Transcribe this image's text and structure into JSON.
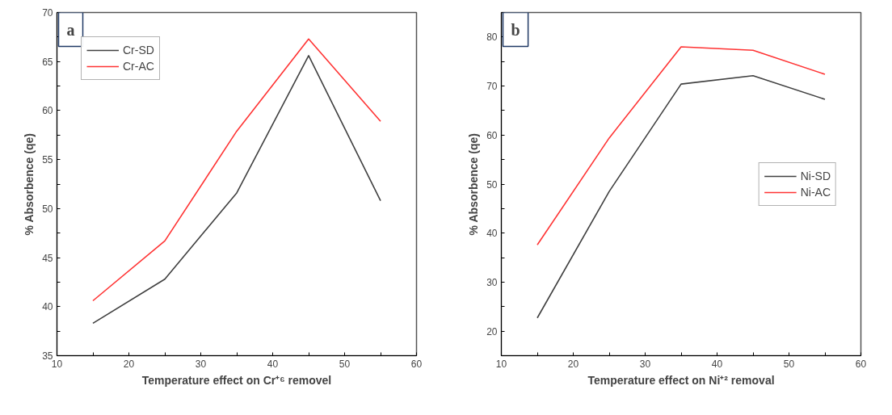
{
  "chart_data": [
    {
      "type": "line",
      "annotations": [
        "a"
      ],
      "xlabel": "Temperature effect on Cr⁺⁶ removel",
      "ylabel": "% Absorbence (qe)",
      "x": [
        15,
        25,
        35,
        45,
        55
      ],
      "series": [
        {
          "name": "Cr-SD",
          "color": "#404040",
          "values": [
            38.3,
            42.8,
            51.6,
            65.6,
            50.8
          ]
        },
        {
          "name": "Cr-AC",
          "color": "#ff3333",
          "values": [
            40.6,
            46.7,
            57.9,
            67.3,
            58.9
          ]
        }
      ],
      "xlim": [
        10,
        60
      ],
      "xticks": [
        10,
        {
          "value": 15,
          "label": null
        },
        20,
        {
          "value": 25,
          "label": null
        },
        30,
        {
          "value": 35,
          "label": null
        },
        40,
        {
          "value": 45,
          "label": null
        },
        50,
        {
          "value": 55,
          "label": null
        },
        60
      ],
      "ylim": [
        35,
        70
      ],
      "yticks": [
        35,
        {
          "value": 37.5,
          "label": null
        },
        40,
        {
          "value": 42.5,
          "label": null
        },
        45,
        {
          "value": 47.5,
          "label": null
        },
        50,
        {
          "value": 52.5,
          "label": null
        },
        55,
        {
          "value": 57.5,
          "label": null
        },
        60,
        {
          "value": 62.5,
          "label": null
        },
        65,
        {
          "value": 67.5,
          "label": null
        },
        70
      ],
      "grid": false,
      "legend": "top left",
      "marker": "none",
      "line_style": "solid"
    },
    {
      "type": "line",
      "annotations": [
        "b"
      ],
      "xlabel": "Temperature effect on Ni⁺² removal",
      "ylabel": "% Absorbence (qe)",
      "x": [
        15,
        25,
        35,
        45,
        55
      ],
      "series": [
        {
          "name": "Ni-SD",
          "color": "#404040",
          "values": [
            22.7,
            48.5,
            70.4,
            72.1,
            67.3
          ]
        },
        {
          "name": "Ni-AC",
          "color": "#ff3333",
          "values": [
            37.6,
            59.4,
            78.0,
            77.3,
            72.4
          ]
        }
      ],
      "xlim": [
        10,
        60
      ],
      "xticks": [
        10,
        {
          "value": 15,
          "label": null
        },
        20,
        {
          "value": 25,
          "label": null
        },
        30,
        {
          "value": 35,
          "label": null
        },
        40,
        {
          "value": 45,
          "label": null
        },
        50,
        {
          "value": 55,
          "label": null
        },
        60
      ],
      "ylim": [
        15,
        85
      ],
      "yticks": [
        {
          "value": 15,
          "label": null
        },
        20,
        {
          "value": 25,
          "label": null
        },
        30,
        {
          "value": 35,
          "label": null
        },
        40,
        {
          "value": 45,
          "label": null
        },
        50,
        {
          "value": 55,
          "label": null
        },
        60,
        {
          "value": 65,
          "label": null
        },
        70,
        {
          "value": 75,
          "label": null
        },
        80,
        {
          "value": 85,
          "label": null
        }
      ],
      "grid": false,
      "legend": "right",
      "marker": "none",
      "line_style": "solid"
    }
  ]
}
